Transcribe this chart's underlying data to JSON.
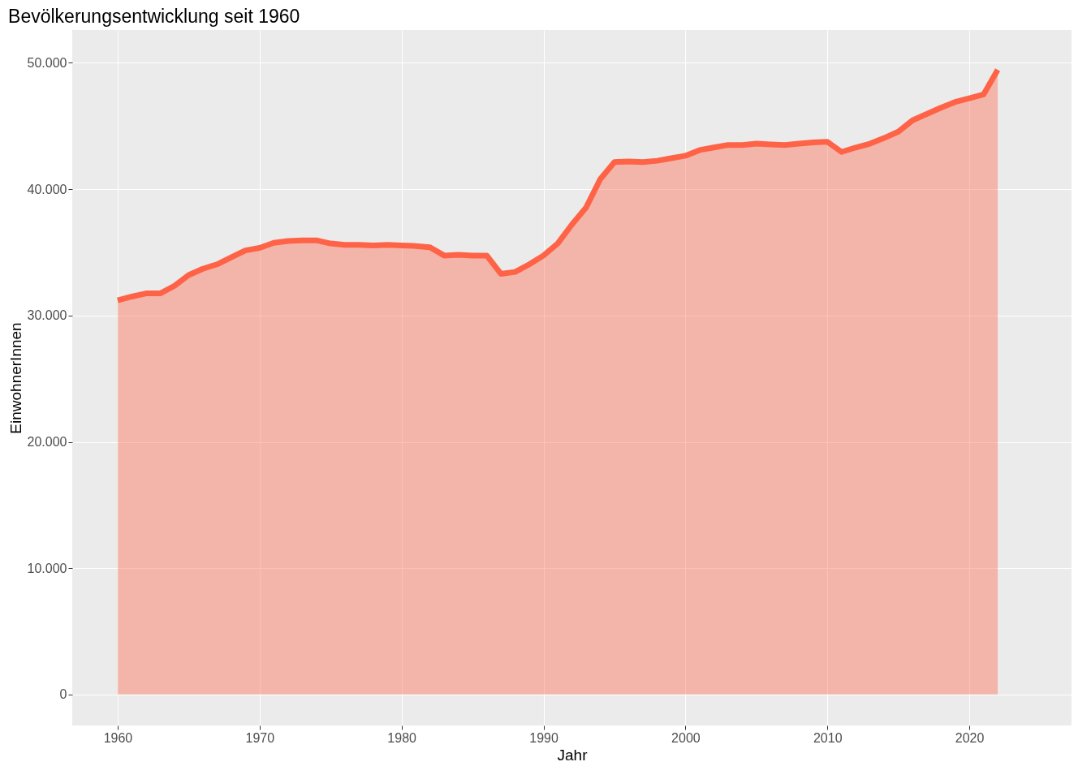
{
  "chart_data": {
    "type": "area",
    "title": "Bevölkerungsentwicklung seit 1960",
    "xlabel": "Jahr",
    "ylabel": "EinwohnerInnen",
    "x": [
      1960,
      1961,
      1962,
      1963,
      1964,
      1965,
      1966,
      1967,
      1968,
      1969,
      1970,
      1971,
      1972,
      1973,
      1974,
      1975,
      1976,
      1977,
      1978,
      1979,
      1980,
      1981,
      1982,
      1983,
      1984,
      1985,
      1986,
      1987,
      1988,
      1989,
      1990,
      1991,
      1992,
      1993,
      1994,
      1995,
      1996,
      1997,
      1998,
      1999,
      2000,
      2001,
      2002,
      2003,
      2004,
      2005,
      2006,
      2007,
      2008,
      2009,
      2010,
      2011,
      2012,
      2013,
      2014,
      2015,
      2016,
      2017,
      2018,
      2019,
      2020,
      2021,
      2022
    ],
    "series": [
      {
        "color": "#ff6347",
        "values": [
          31200,
          31500,
          31750,
          31750,
          32350,
          33200,
          33700,
          34050,
          34600,
          35150,
          35350,
          35750,
          35900,
          35950,
          35950,
          35700,
          35600,
          35600,
          35550,
          35600,
          35550,
          35500,
          35400,
          34750,
          34800,
          34750,
          34750,
          33300,
          33450,
          34050,
          34750,
          35700,
          37200,
          38550,
          40800,
          42150,
          42200,
          42150,
          42250,
          42450,
          42650,
          43100,
          43300,
          43500,
          43500,
          43600,
          43550,
          43500,
          43600,
          43700,
          43750,
          42950,
          43300,
          43600,
          44050,
          44550,
          45450,
          45950,
          46450,
          46900,
          47200,
          47500,
          49450
        ]
      }
    ],
    "xlim": [
      1956.8,
      2027.2
    ],
    "xticks": [
      1960,
      1970,
      1980,
      1990,
      2000,
      2010,
      2020
    ],
    "ylim": [
      -2450,
      52600
    ],
    "yticks": [
      {
        "value": 0,
        "label": "0"
      },
      {
        "value": 10000,
        "label": "10.000"
      },
      {
        "value": 20000,
        "label": "20.000"
      },
      {
        "value": 30000,
        "label": "30.000"
      },
      {
        "value": 40000,
        "label": "40.000"
      },
      {
        "value": 50000,
        "label": "50.000"
      }
    ],
    "grid": true
  }
}
